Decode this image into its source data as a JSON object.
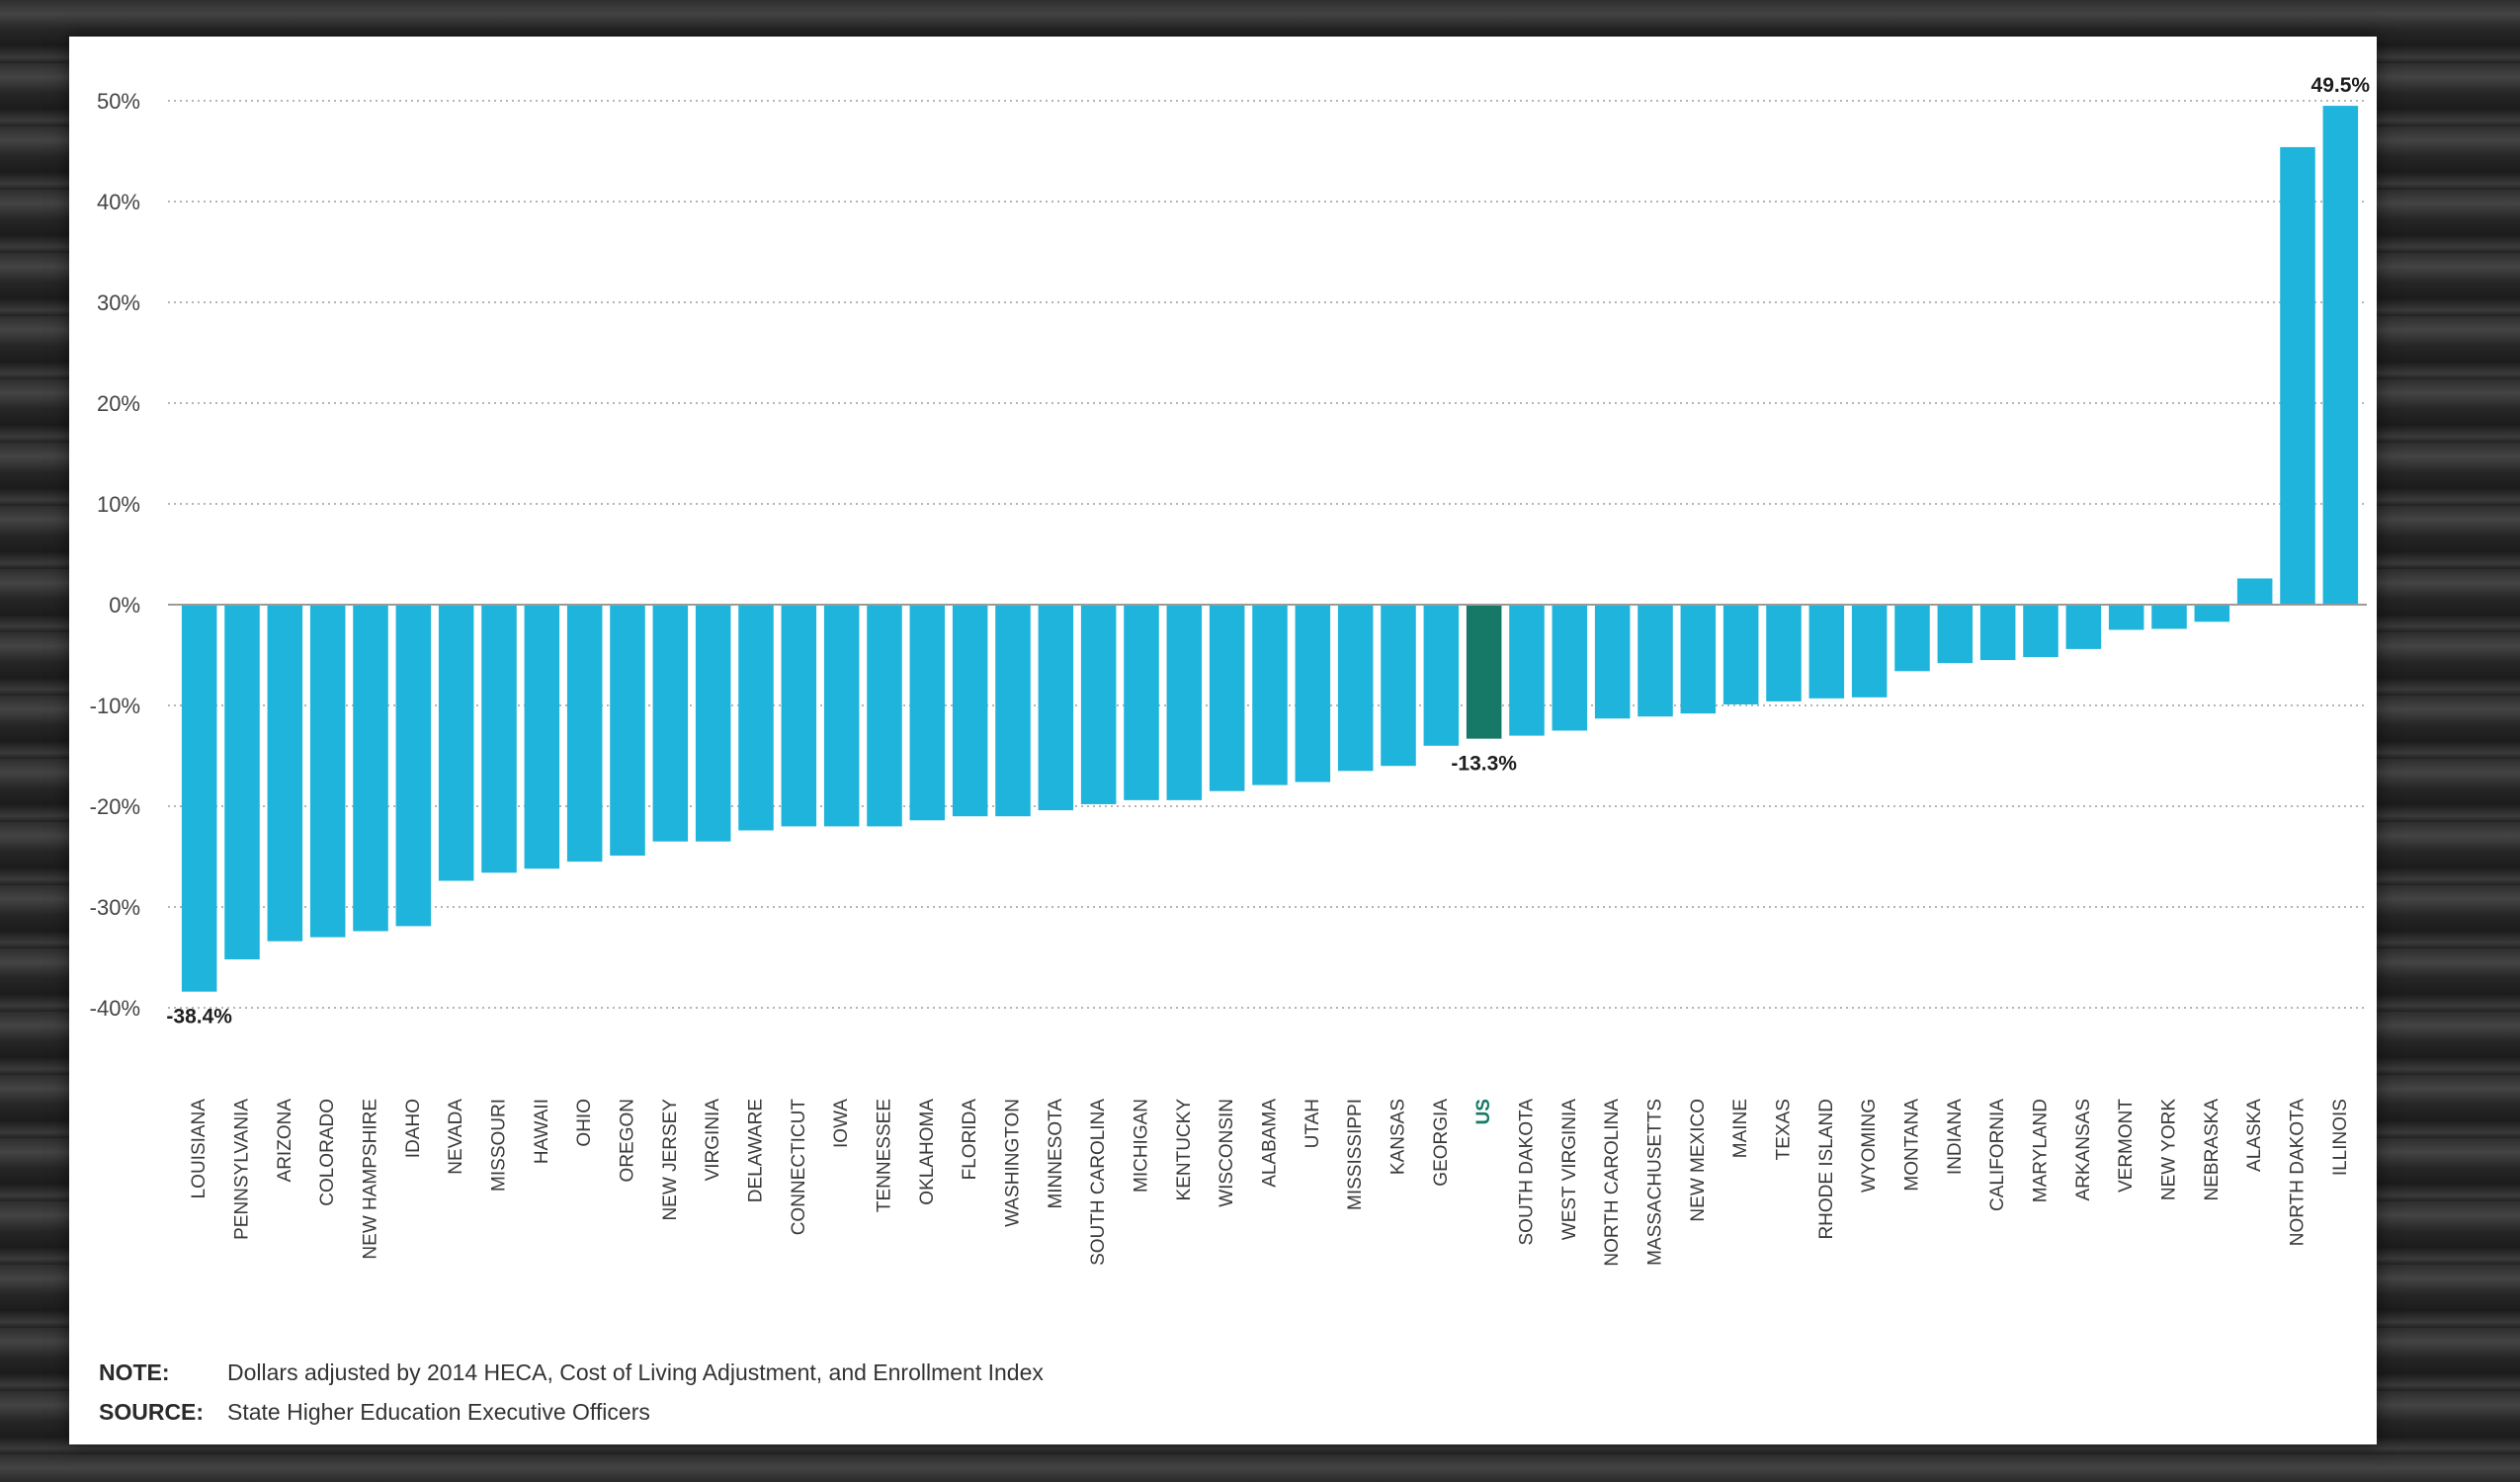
{
  "chart_data": {
    "type": "bar",
    "title": "",
    "xlabel": "",
    "ylabel": "",
    "ylim": [
      -40,
      50
    ],
    "yticks": [
      50,
      40,
      30,
      20,
      10,
      0,
      -10,
      -20,
      -30,
      -40
    ],
    "ytick_labels": [
      "50%",
      "40%",
      "30%",
      "20%",
      "10%",
      "0%",
      "-10%",
      "-20%",
      "-30%",
      "-40%"
    ],
    "grid": "horizontal-dotted",
    "legend": "none",
    "bar_color": "#1fb4dc",
    "highlight_color": "#167866",
    "highlight_category": "US",
    "categories": [
      "LOUISIANA",
      "PENNSYLVANIA",
      "ARIZONA",
      "COLORADO",
      "NEW HAMPSHIRE",
      "IDAHO",
      "NEVADA",
      "MISSOURI",
      "HAWAII",
      "OHIO",
      "OREGON",
      "NEW JERSEY",
      "VIRGINIA",
      "DELAWARE",
      "CONNECTICUT",
      "IOWA",
      "TENNESSEE",
      "OKLAHOMA",
      "FLORIDA",
      "WASHINGTON",
      "MINNESOTA",
      "SOUTH CAROLINA",
      "MICHIGAN",
      "KENTUCKY",
      "WISCONSIN",
      "ALABAMA",
      "UTAH",
      "MISSISSIPPI",
      "KANSAS",
      "GEORGIA",
      "US",
      "SOUTH DAKOTA",
      "WEST VIRGINIA",
      "NORTH CAROLINA",
      "MASSACHUSETTS",
      "NEW MEXICO",
      "MAINE",
      "TEXAS",
      "RHODE ISLAND",
      "WYOMING",
      "MONTANA",
      "INDIANA",
      "CALIFORNIA",
      "MARYLAND",
      "ARKANSAS",
      "VERMONT",
      "NEW YORK",
      "NEBRASKA",
      "ALASKA",
      "NORTH DAKOTA",
      "ILLINOIS"
    ],
    "values": [
      -38.4,
      -35.2,
      -33.4,
      -33.0,
      -32.4,
      -31.9,
      -27.4,
      -26.6,
      -26.2,
      -25.5,
      -24.9,
      -23.5,
      -23.5,
      -22.4,
      -22.0,
      -22.0,
      -22.0,
      -21.4,
      -21.0,
      -21.0,
      -20.4,
      -19.8,
      -19.4,
      -19.4,
      -18.5,
      -17.9,
      -17.6,
      -16.5,
      -16.0,
      -14.0,
      -13.3,
      -13.0,
      -12.5,
      -11.3,
      -11.1,
      -10.8,
      -9.9,
      -9.6,
      -9.3,
      -9.2,
      -6.6,
      -5.8,
      -5.5,
      -5.2,
      -4.4,
      -2.5,
      -2.4,
      -1.7,
      2.6,
      45.4,
      49.5
    ],
    "data_labels": [
      {
        "category": "LOUISIANA",
        "text": "-38.4%",
        "color": "#1e1e1e"
      },
      {
        "category": "US",
        "text": "-13.3%",
        "color": "#1e1e1e"
      },
      {
        "category": "ILLINOIS",
        "text": "49.5%",
        "color": "#1e1e1e"
      }
    ]
  },
  "notes": {
    "note_label": "NOTE:",
    "note_text": "Dollars adjusted by 2014 HECA, Cost of Living Adjustment, and Enrollment Index",
    "source_label": "SOURCE:",
    "source_text": "State Higher Education Executive Officers"
  }
}
